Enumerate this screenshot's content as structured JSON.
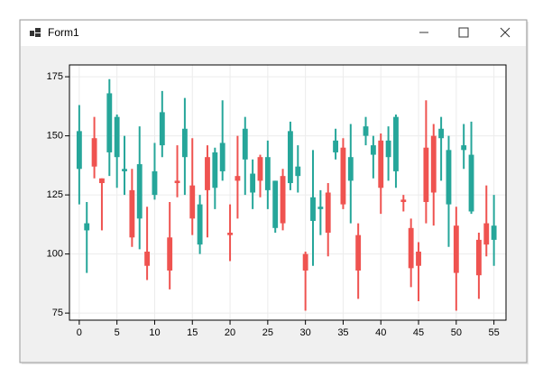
{
  "window": {
    "title": "Form1"
  },
  "chart_data": {
    "type": "candlestick",
    "x": [
      0,
      1,
      2,
      3,
      4,
      5,
      6,
      7,
      8,
      9,
      10,
      11,
      12,
      13,
      14,
      15,
      16,
      17,
      18,
      19,
      20,
      21,
      22,
      23,
      24,
      25,
      26,
      27,
      28,
      29,
      30,
      31,
      32,
      33,
      34,
      35,
      36,
      37,
      38,
      39,
      40,
      41,
      42,
      43,
      44,
      45,
      46,
      47,
      48,
      49,
      50,
      51,
      52,
      53,
      54,
      55
    ],
    "open": [
      136,
      110,
      149,
      132,
      143,
      141,
      135,
      127,
      115,
      101,
      125,
      146,
      107,
      131,
      141,
      129,
      104,
      141,
      128,
      135,
      109,
      133,
      140,
      126,
      141,
      127,
      111,
      133,
      130,
      133,
      100,
      114,
      119,
      126,
      143,
      145,
      131,
      108,
      150,
      142,
      148,
      141,
      135,
      123,
      111,
      101,
      145,
      150,
      149,
      121,
      112,
      144,
      118,
      106,
      113,
      106
    ],
    "high": [
      163,
      122,
      158,
      132,
      174,
      159,
      150,
      136,
      154,
      120,
      147,
      169,
      122,
      146,
      166,
      149,
      125,
      146,
      145,
      165,
      121,
      150,
      158,
      140,
      142,
      148,
      131,
      136,
      156,
      146,
      101,
      144,
      127,
      130,
      153,
      149,
      155,
      113,
      158,
      150,
      151,
      154,
      159,
      125,
      115,
      105,
      165,
      155,
      158,
      150,
      120,
      155,
      156,
      109,
      129,
      125
    ],
    "low": [
      121,
      92,
      132,
      110,
      133,
      128,
      125,
      103,
      102,
      89,
      123,
      141,
      85,
      124,
      125,
      108,
      100,
      107,
      119,
      131,
      97,
      115,
      125,
      119,
      124,
      119,
      109,
      110,
      127,
      126,
      76,
      95,
      108,
      99,
      140,
      119,
      113,
      81,
      146,
      132,
      117,
      131,
      128,
      118,
      86,
      80,
      113,
      112,
      131,
      103,
      76,
      136,
      117,
      81,
      99,
      95
    ],
    "close": [
      152,
      113,
      137,
      130,
      168,
      158,
      136,
      107,
      138,
      95,
      135,
      160,
      93,
      130,
      153,
      115,
      121,
      127,
      143,
      147,
      108,
      131,
      153,
      134,
      131,
      141,
      131,
      113,
      152,
      137,
      93,
      124,
      120,
      109,
      148,
      121,
      141,
      93,
      154,
      146,
      128,
      148,
      158,
      122,
      94,
      95,
      122,
      126,
      153,
      144,
      92,
      146,
      142,
      91,
      104,
      112
    ],
    "up_color": "#26a69a",
    "down_color": "#ef5350",
    "xlim": [
      -1.3,
      56.6
    ],
    "xticks": [
      0,
      5,
      10,
      15,
      20,
      25,
      30,
      35,
      40,
      45,
      50,
      55
    ],
    "ylim": [
      72,
      180
    ],
    "yticks": [
      75,
      100,
      125,
      150,
      175
    ],
    "grid": true
  }
}
